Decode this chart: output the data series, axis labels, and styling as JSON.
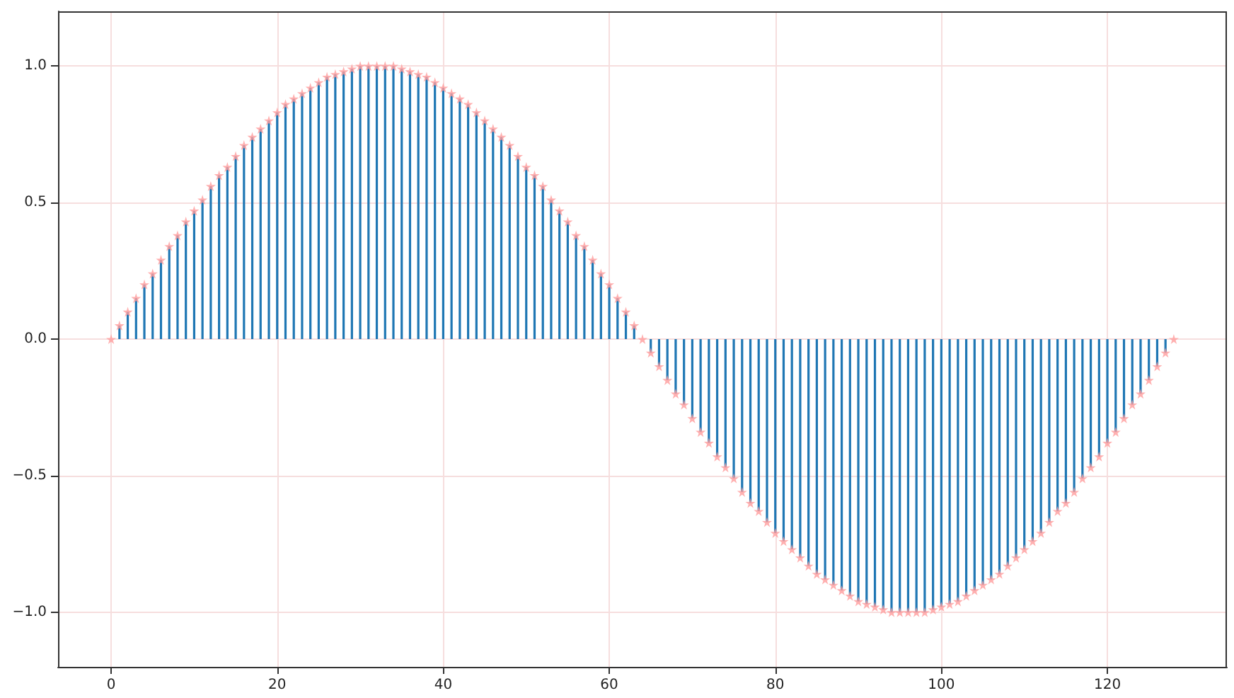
{
  "chart_data": {
    "type": "scatter",
    "x": [
      0,
      1,
      2,
      3,
      4,
      5,
      6,
      7,
      8,
      9,
      10,
      11,
      12,
      13,
      14,
      15,
      16,
      17,
      18,
      19,
      20,
      21,
      22,
      23,
      24,
      25,
      26,
      27,
      28,
      29,
      30,
      31,
      32,
      33,
      34,
      35,
      36,
      37,
      38,
      39,
      40,
      41,
      42,
      43,
      44,
      45,
      46,
      47,
      48,
      49,
      50,
      51,
      52,
      53,
      54,
      55,
      56,
      57,
      58,
      59,
      60,
      61,
      62,
      63,
      64,
      65,
      66,
      67,
      68,
      69,
      70,
      71,
      72,
      73,
      74,
      75,
      76,
      77,
      78,
      79,
      80,
      81,
      82,
      83,
      84,
      85,
      86,
      87,
      88,
      89,
      90,
      91,
      92,
      93,
      94,
      95,
      96,
      97,
      98,
      99,
      100,
      101,
      102,
      103,
      104,
      105,
      106,
      107,
      108,
      109,
      110,
      111,
      112,
      113,
      114,
      115,
      116,
      117,
      118,
      119,
      120,
      121,
      122,
      123,
      124,
      125,
      126,
      127,
      128
    ],
    "series": [
      {
        "type": "bar",
        "color": "#1f77b4",
        "values": [
          0,
          0.05,
          0.1,
          0.15,
          0.2,
          0.24,
          0.29,
          0.34,
          0.38,
          0.43,
          0.47,
          0.51,
          0.56,
          0.6,
          0.63,
          0.67,
          0.71,
          0.74,
          0.77,
          0.8,
          0.83,
          0.86,
          0.88,
          0.9,
          0.92,
          0.94,
          0.96,
          0.97,
          0.98,
          0.99,
          1,
          1,
          1,
          1,
          1,
          0.99,
          0.98,
          0.97,
          0.96,
          0.94,
          0.92,
          0.9,
          0.88,
          0.86,
          0.83,
          0.8,
          0.77,
          0.74,
          0.71,
          0.67,
          0.63,
          0.6,
          0.56,
          0.51,
          0.47,
          0.43,
          0.38,
          0.34,
          0.29,
          0.24,
          0.2,
          0.15,
          0.1,
          0.05,
          0,
          -0.05,
          -0.1,
          -0.15,
          -0.2,
          -0.24,
          -0.29,
          -0.34,
          -0.38,
          -0.43,
          -0.47,
          -0.51,
          -0.56,
          -0.6,
          -0.63,
          -0.67,
          -0.71,
          -0.74,
          -0.77,
          -0.8,
          -0.83,
          -0.86,
          -0.88,
          -0.9,
          -0.92,
          -0.94,
          -0.96,
          -0.97,
          -0.98,
          -0.99,
          -1,
          -1,
          -1,
          -1,
          -1,
          -0.99,
          -0.98,
          -0.97,
          -0.96,
          -0.94,
          -0.92,
          -0.9,
          -0.88,
          -0.86,
          -0.83,
          -0.8,
          -0.77,
          -0.74,
          -0.71,
          -0.67,
          -0.63,
          -0.6,
          -0.56,
          -0.51,
          -0.47,
          -0.43,
          -0.38,
          -0.34,
          -0.29,
          -0.24,
          -0.2,
          -0.15,
          -0.1,
          -0.05,
          0
        ]
      },
      {
        "color": "#ff9c9c",
        "values": [
          0,
          0.05,
          0.1,
          0.15,
          0.2,
          0.24,
          0.29,
          0.34,
          0.38,
          0.43,
          0.47,
          0.51,
          0.56,
          0.6,
          0.63,
          0.67,
          0.71,
          0.74,
          0.77,
          0.8,
          0.83,
          0.86,
          0.88,
          0.9,
          0.92,
          0.94,
          0.96,
          0.97,
          0.98,
          0.99,
          1,
          1,
          1,
          1,
          1,
          0.99,
          0.98,
          0.97,
          0.96,
          0.94,
          0.92,
          0.9,
          0.88,
          0.86,
          0.83,
          0.8,
          0.77,
          0.74,
          0.71,
          0.67,
          0.63,
          0.6,
          0.56,
          0.51,
          0.47,
          0.43,
          0.38,
          0.34,
          0.29,
          0.24,
          0.2,
          0.15,
          0.1,
          0.05,
          0,
          -0.05,
          -0.1,
          -0.15,
          -0.2,
          -0.24,
          -0.29,
          -0.34,
          -0.38,
          -0.43,
          -0.47,
          -0.51,
          -0.56,
          -0.6,
          -0.63,
          -0.67,
          -0.71,
          -0.74,
          -0.77,
          -0.8,
          -0.83,
          -0.86,
          -0.88,
          -0.9,
          -0.92,
          -0.94,
          -0.96,
          -0.97,
          -0.98,
          -0.99,
          -1,
          -1,
          -1,
          -1,
          -1,
          -0.99,
          -0.98,
          -0.97,
          -0.96,
          -0.94,
          -0.92,
          -0.9,
          -0.88,
          -0.86,
          -0.83,
          -0.8,
          -0.77,
          -0.74,
          -0.71,
          -0.67,
          -0.63,
          -0.6,
          -0.56,
          -0.51,
          -0.47,
          -0.43,
          -0.38,
          -0.34,
          -0.29,
          -0.24,
          -0.2,
          -0.15,
          -0.1,
          -0.05,
          0
        ]
      }
    ],
    "marker": "star",
    "xlim": [
      -6.4,
      134.4
    ],
    "xticks": [
      0,
      20,
      40,
      60,
      80,
      100,
      120
    ],
    "ylim": [
      -1.2,
      1.2
    ],
    "yticks": [
      {
        "value": -1,
        "label": "−1.0"
      },
      {
        "value": -0.5,
        "label": "−0.5"
      },
      {
        "value": 0,
        "label": "0.0"
      },
      {
        "value": 0.5,
        "label": "0.5"
      },
      {
        "value": 1,
        "label": "1.0"
      }
    ],
    "grid": true
  }
}
